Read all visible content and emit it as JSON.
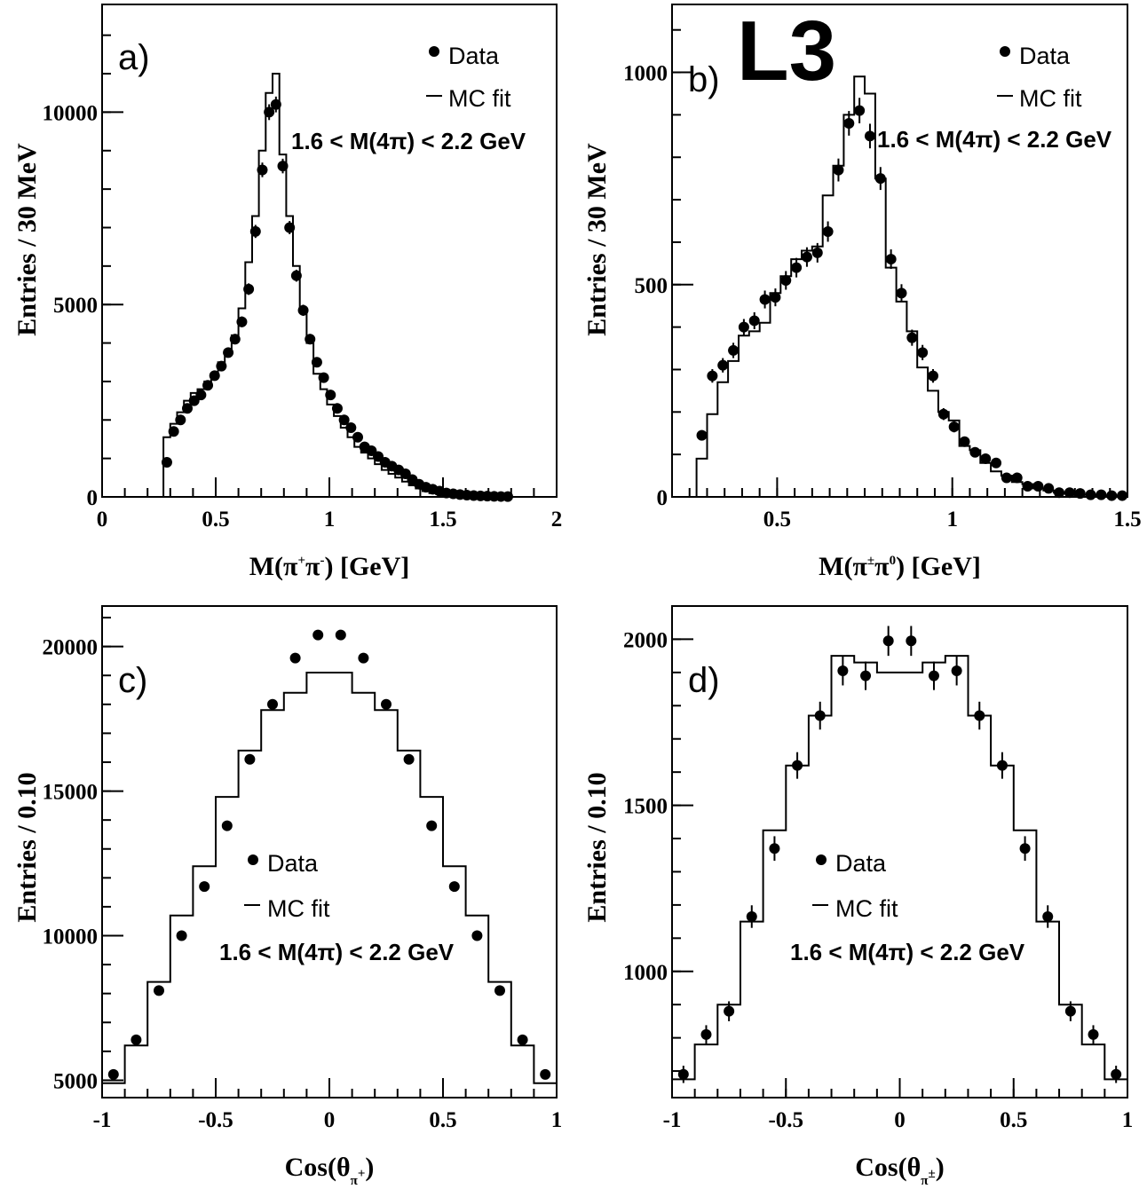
{
  "logo": "L3",
  "legend": {
    "data_label": "Data",
    "mc_label": "MC fit"
  },
  "chart_data": [
    {
      "id": "a",
      "type": "scatter",
      "panel_label": "a)",
      "annotation": "1.6 < M(4π) < 2.2 GeV",
      "xlabel": "M(π+π-)   [GeV]",
      "ylabel": "Entries /  30 MeV",
      "xlim": [
        0,
        2
      ],
      "ylim": [
        0,
        12800
      ],
      "xticks": [
        0,
        0.5,
        1,
        1.5,
        2
      ],
      "xtick_labels": [
        "0",
        "0.5",
        "1",
        "1.5",
        "2"
      ],
      "yticks": [
        0,
        5000,
        10000
      ],
      "ytick_labels": [
        "0",
        "5000",
        "10000"
      ],
      "legend_position": "top-right",
      "series": [
        {
          "name": "Data",
          "marker": "dot",
          "x": [
            0.285,
            0.315,
            0.345,
            0.375,
            0.405,
            0.435,
            0.465,
            0.495,
            0.525,
            0.555,
            0.585,
            0.615,
            0.645,
            0.675,
            0.705,
            0.735,
            0.765,
            0.795,
            0.825,
            0.855,
            0.885,
            0.915,
            0.945,
            0.975,
            1.005,
            1.035,
            1.065,
            1.095,
            1.125,
            1.155,
            1.185,
            1.215,
            1.245,
            1.275,
            1.305,
            1.335,
            1.365,
            1.395,
            1.425,
            1.455,
            1.485,
            1.515,
            1.545,
            1.575,
            1.605,
            1.635,
            1.665,
            1.695,
            1.725,
            1.755,
            1.785
          ],
          "y": [
            900,
            1700,
            2000,
            2300,
            2500,
            2650,
            2900,
            3150,
            3400,
            3750,
            4100,
            4550,
            5400,
            6900,
            8500,
            10000,
            10200,
            8600,
            7000,
            5750,
            4850,
            4100,
            3500,
            3100,
            2650,
            2300,
            2000,
            1800,
            1550,
            1300,
            1200,
            1050,
            900,
            800,
            700,
            600,
            450,
            330,
            250,
            200,
            150,
            100,
            80,
            60,
            45,
            35,
            25,
            20,
            15,
            10,
            8
          ],
          "yerr": [
            60,
            80,
            90,
            100,
            110,
            110,
            115,
            120,
            125,
            130,
            135,
            140,
            150,
            170,
            190,
            205,
            205,
            190,
            170,
            155,
            145,
            135,
            125,
            115,
            105,
            100,
            95,
            90,
            85,
            80,
            75,
            70,
            65,
            60,
            55,
            50,
            45,
            40,
            35,
            30,
            25,
            20,
            18,
            15,
            12,
            10,
            8,
            6,
            5,
            4,
            3
          ]
        },
        {
          "name": "MC fit",
          "type": "step",
          "edges": [
            0,
            0.27,
            0.3,
            0.33,
            0.36,
            0.39,
            0.42,
            0.45,
            0.48,
            0.51,
            0.54,
            0.57,
            0.6,
            0.63,
            0.66,
            0.69,
            0.72,
            0.75,
            0.78,
            0.81,
            0.84,
            0.87,
            0.9,
            0.93,
            0.96,
            0.99,
            1.02,
            1.05,
            1.08,
            1.11,
            1.14,
            1.17,
            1.2,
            1.23,
            1.26,
            1.29,
            1.32,
            1.35,
            1.38,
            1.41,
            1.44,
            1.47,
            1.5,
            1.53,
            1.56,
            1.59,
            1.62,
            1.65,
            1.68,
            1.71,
            1.74,
            1.77,
            1.8,
            2.0
          ],
          "values": [
            0,
            1550,
            1900,
            2200,
            2500,
            2700,
            2800,
            3000,
            3200,
            3500,
            3800,
            4200,
            4900,
            6100,
            7300,
            9000,
            10500,
            11000,
            8900,
            7300,
            6000,
            4900,
            4000,
            3200,
            2800,
            2400,
            2100,
            1800,
            1550,
            1300,
            1150,
            1000,
            850,
            700,
            600,
            500,
            400,
            300,
            220,
            150,
            100,
            70,
            50,
            30,
            20,
            15,
            10,
            8,
            5,
            5,
            5,
            5,
            0
          ]
        }
      ]
    },
    {
      "id": "b",
      "type": "scatter",
      "panel_label": "b)",
      "annotation": "1.6 < M(4π) < 2.2 GeV",
      "xlabel": "M(π±π0)   [GeV]",
      "ylabel": "Entries /  30 MeV",
      "xlim": [
        0.2,
        1.5
      ],
      "ylim": [
        0,
        1160
      ],
      "xticks": [
        0.5,
        1,
        1.5
      ],
      "xtick_labels": [
        "0.5",
        "1",
        "1.5"
      ],
      "yticks": [
        0,
        500,
        1000
      ],
      "ytick_labels": [
        "0",
        "500",
        "1000"
      ],
      "legend_position": "top-right",
      "series": [
        {
          "name": "Data",
          "marker": "dot",
          "x": [
            0.285,
            0.315,
            0.345,
            0.375,
            0.405,
            0.435,
            0.465,
            0.495,
            0.525,
            0.555,
            0.585,
            0.615,
            0.645,
            0.675,
            0.705,
            0.735,
            0.765,
            0.795,
            0.825,
            0.855,
            0.885,
            0.915,
            0.945,
            0.975,
            1.005,
            1.035,
            1.065,
            1.095,
            1.125,
            1.155,
            1.185,
            1.215,
            1.245,
            1.275,
            1.305,
            1.335,
            1.365,
            1.395,
            1.425,
            1.455,
            1.485
          ],
          "y": [
            145,
            285,
            310,
            345,
            400,
            415,
            465,
            470,
            510,
            540,
            565,
            575,
            625,
            770,
            880,
            910,
            850,
            750,
            560,
            480,
            375,
            340,
            285,
            195,
            165,
            130,
            105,
            90,
            80,
            45,
            45,
            25,
            25,
            20,
            10,
            10,
            8,
            5,
            5,
            3,
            3
          ],
          "yerr": [
            12,
            16,
            17,
            18,
            19,
            20,
            21,
            21,
            22,
            23,
            23,
            23,
            24,
            27,
            29,
            30,
            29,
            27,
            23,
            21,
            19,
            18,
            16,
            14,
            13,
            11,
            10,
            9,
            9,
            7,
            7,
            5,
            5,
            4,
            3,
            3,
            3,
            2,
            2,
            2,
            2
          ]
        },
        {
          "name": "MC fit",
          "type": "step",
          "edges": [
            0.2,
            0.27,
            0.3,
            0.33,
            0.36,
            0.39,
            0.42,
            0.45,
            0.48,
            0.51,
            0.54,
            0.57,
            0.6,
            0.63,
            0.66,
            0.69,
            0.72,
            0.75,
            0.78,
            0.81,
            0.84,
            0.87,
            0.9,
            0.93,
            0.96,
            0.99,
            1.02,
            1.05,
            1.08,
            1.11,
            1.14,
            1.17,
            1.2,
            1.23,
            1.26,
            1.29,
            1.32,
            1.35,
            1.38,
            1.41,
            1.44,
            1.47,
            1.5
          ],
          "values": [
            0,
            90,
            195,
            270,
            320,
            380,
            390,
            410,
            480,
            520,
            560,
            580,
            590,
            710,
            780,
            900,
            990,
            950,
            750,
            540,
            460,
            390,
            305,
            250,
            200,
            180,
            120,
            110,
            80,
            60,
            50,
            35,
            30,
            20,
            15,
            10,
            8,
            5,
            5,
            3,
            3,
            0
          ]
        }
      ]
    },
    {
      "id": "c",
      "type": "scatter",
      "panel_label": "c)",
      "annotation": "1.6 < M(4π) < 2.2 GeV",
      "xlabel": "Cos(θπ+)",
      "ylabel": "Entries / 0.10",
      "xlim": [
        -1,
        1
      ],
      "ylim": [
        4400,
        21400
      ],
      "xticks": [
        -1,
        -0.5,
        0,
        0.5,
        1
      ],
      "xtick_labels": [
        "-1",
        "-0.5",
        "0",
        "0.5",
        "1"
      ],
      "yticks": [
        5000,
        10000,
        15000,
        20000
      ],
      "ytick_labels": [
        "5000",
        "10000",
        "15000",
        "20000"
      ],
      "legend_position": "center",
      "series": [
        {
          "name": "Data",
          "marker": "dot",
          "x": [
            -0.95,
            -0.85,
            -0.75,
            -0.65,
            -0.55,
            -0.45,
            -0.35,
            -0.25,
            -0.15,
            -0.05,
            0.05,
            0.15,
            0.25,
            0.35,
            0.45,
            0.55,
            0.65,
            0.75,
            0.85,
            0.95
          ],
          "y": [
            5200,
            6400,
            8100,
            10000,
            11700,
            13800,
            16100,
            18000,
            19600,
            20400,
            20400,
            19600,
            18000,
            16100,
            13800,
            11700,
            10000,
            8100,
            6400,
            5200
          ],
          "yerr": [
            72,
            80,
            90,
            100,
            108,
            117,
            127,
            134,
            140,
            143,
            143,
            140,
            134,
            127,
            117,
            108,
            100,
            90,
            80,
            72
          ]
        },
        {
          "name": "MC fit",
          "type": "step",
          "edges": [
            -1,
            -0.9,
            -0.8,
            -0.7,
            -0.6,
            -0.5,
            -0.4,
            -0.3,
            -0.2,
            -0.1,
            0,
            0.1,
            0.2,
            0.3,
            0.4,
            0.5,
            0.6,
            0.7,
            0.8,
            0.9,
            1
          ],
          "values": [
            4900,
            6200,
            8400,
            10700,
            12400,
            14800,
            16400,
            17800,
            18400,
            19100,
            19100,
            18400,
            17800,
            16400,
            14800,
            12400,
            10700,
            8400,
            6200,
            4900
          ]
        }
      ]
    },
    {
      "id": "d",
      "type": "scatter",
      "panel_label": "d)",
      "annotation": "1.6 < M(4π) < 2.2 GeV",
      "xlabel": "Cos(θπ±)",
      "ylabel": "Entries / 0.10",
      "xlim": [
        -1,
        1
      ],
      "ylim": [
        620,
        2100
      ],
      "xticks": [
        -1,
        -0.5,
        0,
        0.5,
        1
      ],
      "xtick_labels": [
        "-1",
        "-0.5",
        "0",
        "0.5",
        "1"
      ],
      "yticks": [
        1000,
        1500,
        2000
      ],
      "ytick_labels": [
        "1000",
        "1500",
        "2000"
      ],
      "legend_position": "center",
      "series": [
        {
          "name": "Data",
          "marker": "dot",
          "x": [
            -0.95,
            -0.85,
            -0.75,
            -0.65,
            -0.55,
            -0.45,
            -0.35,
            -0.25,
            -0.15,
            -0.05,
            0.05,
            0.15,
            0.25,
            0.35,
            0.45,
            0.55,
            0.65,
            0.75,
            0.85,
            0.95
          ],
          "y": [
            690,
            810,
            880,
            1165,
            1370,
            1620,
            1770,
            1905,
            1890,
            1995,
            1995,
            1890,
            1905,
            1770,
            1620,
            1370,
            1165,
            880,
            810,
            690
          ],
          "yerr": [
            26,
            28,
            30,
            34,
            37,
            40,
            42,
            44,
            43,
            45,
            45,
            43,
            44,
            42,
            40,
            37,
            34,
            30,
            28,
            26
          ]
        },
        {
          "name": "MC fit",
          "type": "step",
          "edges": [
            -1,
            -0.9,
            -0.8,
            -0.7,
            -0.6,
            -0.5,
            -0.4,
            -0.3,
            -0.2,
            -0.1,
            0,
            0.1,
            0.2,
            0.3,
            0.4,
            0.5,
            0.6,
            0.7,
            0.8,
            0.9,
            1
          ],
          "values": [
            675,
            780,
            900,
            1150,
            1425,
            1620,
            1770,
            1950,
            1930,
            1900,
            1900,
            1930,
            1950,
            1770,
            1620,
            1425,
            1150,
            900,
            780,
            675
          ]
        }
      ]
    }
  ]
}
